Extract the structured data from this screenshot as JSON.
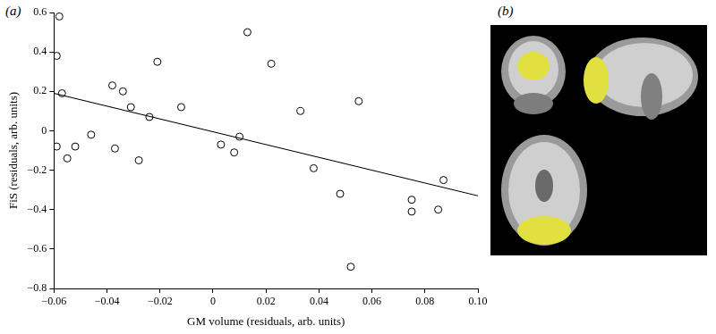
{
  "chart_data": {
    "type": "scatter",
    "annotations": [
      "(a)",
      "(b)"
    ],
    "x_label": "GM volume (residuals, arb. units)",
    "y_label": "FiS (residuals, arb. units)",
    "xlim": [
      -0.06,
      0.1
    ],
    "xticks": [
      {
        "value": -0.06,
        "label": "−0.06"
      },
      {
        "value": -0.04,
        "label": "−0.04"
      },
      {
        "value": -0.02,
        "label": "−0.02"
      },
      0,
      0.02,
      0.04,
      0.06,
      0.08,
      {
        "value": 0.1,
        "label": "0.10"
      }
    ],
    "ylim": [
      -0.8,
      0.6
    ],
    "yticks": [
      {
        "value": -0.8,
        "label": "−0.8"
      },
      {
        "value": -0.6,
        "label": "−0.6"
      },
      {
        "value": -0.4,
        "label": "−0.4"
      },
      {
        "value": -0.2,
        "label": "−0.2"
      },
      0,
      0.2,
      0.4,
      0.6
    ],
    "grid": false,
    "series": [
      {
        "type": "scatter",
        "marker": "circle",
        "color": "#000000",
        "x": [
          -0.058,
          -0.059,
          -0.057,
          -0.059,
          -0.055,
          -0.052,
          -0.046,
          -0.038,
          -0.037,
          -0.034,
          -0.031,
          -0.028,
          -0.024,
          -0.021,
          -0.012,
          0.003,
          0.008,
          0.01,
          0.013,
          0.022,
          0.033,
          0.038,
          0.048,
          0.052,
          0.055,
          0.075,
          0.075,
          0.085,
          0.087
        ],
        "values": [
          0.58,
          0.38,
          0.19,
          -0.08,
          -0.14,
          -0.08,
          -0.02,
          0.23,
          -0.09,
          0.2,
          0.12,
          -0.15,
          0.07,
          0.35,
          0.12,
          -0.07,
          -0.11,
          -0.03,
          0.5,
          0.34,
          0.1,
          -0.19,
          -0.32,
          -0.69,
          0.15,
          -0.35,
          -0.41,
          -0.4,
          -0.25
        ]
      },
      {
        "type": "line",
        "line_style": "solid",
        "color": "#000000",
        "x": [
          -0.06,
          0.1
        ],
        "values": [
          0.19,
          -0.33
        ]
      }
    ]
  }
}
